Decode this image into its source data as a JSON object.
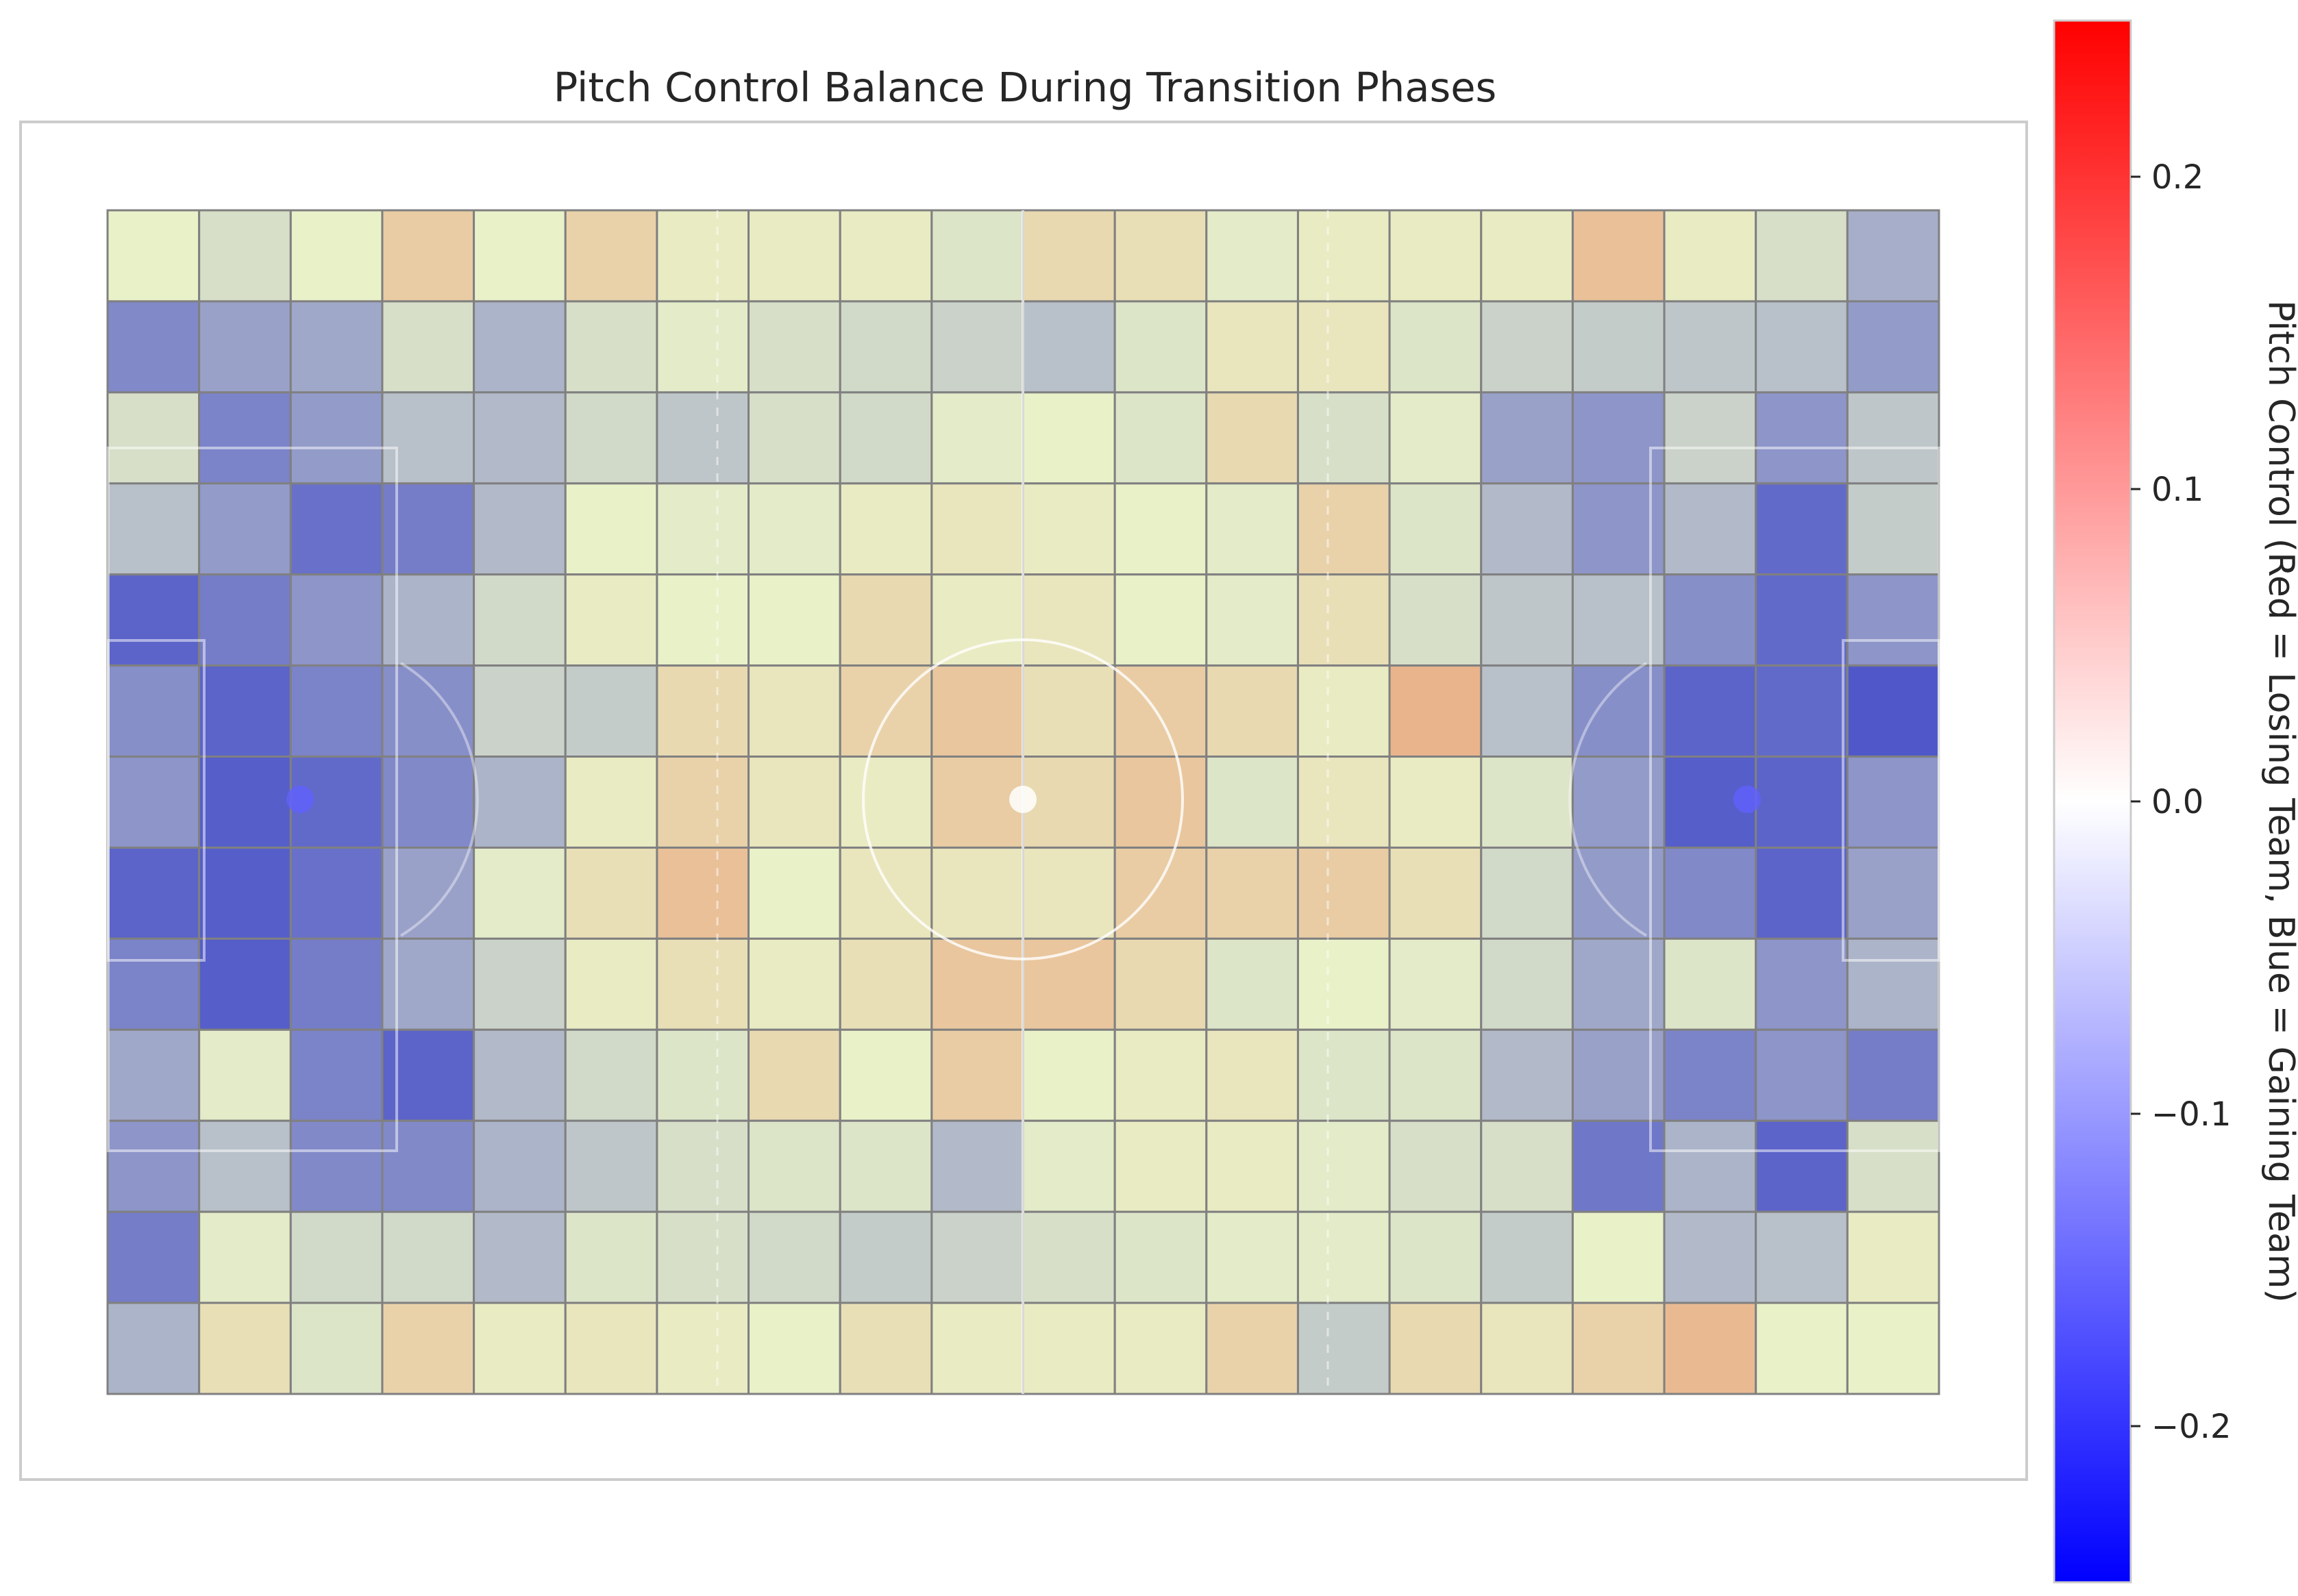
{
  "chart_data": {
    "type": "heatmap",
    "title": "Pitch Control Balance During Transition Phases",
    "colorbar": {
      "label": "Pitch Control (Red = Losing Team, Blue = Gaining Team)",
      "colormap": "bwr",
      "vmin": -0.25,
      "vmax": 0.25,
      "ticks": [
        0.2,
        0.1,
        0.0,
        -0.1,
        -0.2
      ],
      "tick_labels": [
        "0.2",
        "0.1",
        "0.0",
        "−0.1",
        "−0.2"
      ],
      "colors": {
        "low": "#0000ff",
        "mid": "#ffffff",
        "high": "#ff0000"
      }
    },
    "overlay": {
      "color": "#c8dc78",
      "alpha": 0.4
    },
    "grid": {
      "rows": 13,
      "cols": 20,
      "line_color": "#808080"
    },
    "pitch": {
      "markings": true,
      "line_color": "#ffffff"
    },
    "values": [
      [
        0.0,
        -0.03,
        0.0,
        0.06,
        0.0,
        0.05,
        0.01,
        0.01,
        0.01,
        -0.02,
        0.04,
        0.03,
        -0.01,
        0.01,
        0.01,
        0.01,
        0.08,
        0.01,
        -0.03,
        -0.11
      ],
      [
        -0.17,
        -0.13,
        -0.12,
        -0.03,
        -0.1,
        -0.03,
        -0.01,
        -0.03,
        -0.04,
        -0.05,
        -0.08,
        -0.02,
        0.02,
        0.02,
        -0.02,
        -0.05,
        -0.06,
        -0.07,
        -0.08,
        -0.14
      ],
      [
        -0.03,
        -0.18,
        -0.14,
        -0.08,
        -0.09,
        -0.04,
        -0.07,
        -0.03,
        -0.04,
        -0.01,
        0.0,
        -0.02,
        0.04,
        -0.03,
        -0.01,
        -0.13,
        -0.15,
        -0.05,
        -0.15,
        -0.07
      ],
      [
        -0.08,
        -0.14,
        -0.21,
        -0.19,
        -0.09,
        0.0,
        -0.01,
        -0.01,
        0.01,
        0.02,
        0.01,
        0.0,
        -0.01,
        0.05,
        -0.02,
        -0.09,
        -0.15,
        -0.09,
        -0.22,
        -0.06
      ],
      [
        -0.23,
        -0.19,
        -0.15,
        -0.1,
        -0.04,
        0.01,
        0.0,
        0.0,
        0.04,
        0.01,
        0.02,
        0.0,
        -0.01,
        0.03,
        -0.03,
        -0.07,
        -0.08,
        -0.16,
        -0.22,
        -0.15
      ],
      [
        -0.16,
        -0.23,
        -0.18,
        -0.16,
        -0.05,
        -0.06,
        0.04,
        0.02,
        0.05,
        0.07,
        0.03,
        0.06,
        0.04,
        0.01,
        0.1,
        -0.08,
        -0.16,
        -0.23,
        -0.22,
        -0.25
      ],
      [
        -0.15,
        -0.24,
        -0.22,
        -0.17,
        -0.1,
        0.01,
        0.05,
        0.02,
        0.01,
        0.06,
        0.04,
        0.07,
        -0.02,
        0.02,
        0.01,
        -0.02,
        -0.14,
        -0.24,
        -0.23,
        -0.15
      ],
      [
        -0.23,
        -0.24,
        -0.21,
        -0.13,
        -0.01,
        0.03,
        0.08,
        0.0,
        0.02,
        0.02,
        0.02,
        0.06,
        0.05,
        0.06,
        0.03,
        -0.04,
        -0.14,
        -0.17,
        -0.23,
        -0.13
      ],
      [
        -0.18,
        -0.24,
        -0.19,
        -0.12,
        -0.05,
        0.01,
        0.03,
        0.01,
        0.03,
        0.07,
        0.07,
        0.04,
        -0.02,
        0.0,
        -0.01,
        -0.04,
        -0.12,
        -0.02,
        -0.15,
        -0.1
      ],
      [
        -0.12,
        -0.01,
        -0.18,
        -0.23,
        -0.09,
        -0.04,
        -0.02,
        0.04,
        0.0,
        0.06,
        0.0,
        0.01,
        0.02,
        -0.02,
        -0.02,
        -0.09,
        -0.13,
        -0.18,
        -0.15,
        -0.19
      ],
      [
        -0.15,
        -0.08,
        -0.17,
        -0.17,
        -0.1,
        -0.07,
        -0.03,
        -0.02,
        -0.02,
        -0.09,
        -0.01,
        0.01,
        0.01,
        -0.01,
        -0.03,
        -0.03,
        -0.2,
        -0.1,
        -0.23,
        -0.03
      ],
      [
        -0.19,
        -0.01,
        -0.04,
        -0.04,
        -0.09,
        -0.02,
        -0.03,
        -0.04,
        -0.06,
        -0.05,
        -0.03,
        -0.02,
        -0.01,
        -0.01,
        -0.02,
        -0.06,
        0.0,
        -0.09,
        -0.08,
        0.01
      ],
      [
        -0.1,
        0.03,
        -0.02,
        0.05,
        0.01,
        0.02,
        0.01,
        0.0,
        0.03,
        0.01,
        0.01,
        0.01,
        0.05,
        -0.06,
        0.04,
        0.02,
        0.05,
        0.09,
        0.0,
        0.0
      ]
    ]
  }
}
